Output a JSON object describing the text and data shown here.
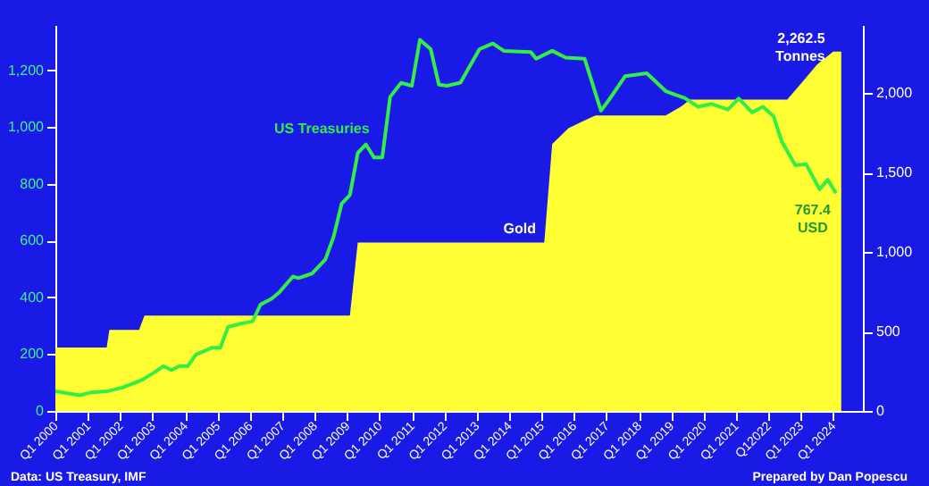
{
  "chart_data": {
    "type": "line",
    "xlim": [
      "2000-01",
      "2024-12"
    ],
    "xticks": [
      {
        "value": "2000-01",
        "label": "Q1 2000"
      },
      {
        "value": "2001-01",
        "label": "Q1 2001"
      },
      {
        "value": "2002-01",
        "label": "Q1 2002"
      },
      {
        "value": "2003-01",
        "label": "Q1 2003"
      },
      {
        "value": "2004-01",
        "label": "Q1 2004"
      },
      {
        "value": "2005-01",
        "label": "Q1 2005"
      },
      {
        "value": "2006-01",
        "label": "Q1 2006"
      },
      {
        "value": "2007-01",
        "label": "Q1 2007"
      },
      {
        "value": "2008-01",
        "label": "Q1 2008"
      },
      {
        "value": "2009-01",
        "label": "Q1 2009"
      },
      {
        "value": "2010-01",
        "label": "Q1 2010"
      },
      {
        "value": "2011-01",
        "label": "Q1 2011"
      },
      {
        "value": "2012-01",
        "label": "Q1 2012"
      },
      {
        "value": "2013-01",
        "label": "Q1 2013"
      },
      {
        "value": "2014-01",
        "label": "Q1 2014"
      },
      {
        "value": "2015-01",
        "label": "Q1 2015"
      },
      {
        "value": "2016-01",
        "label": "Q1 2016"
      },
      {
        "value": "2017-01",
        "label": "Q1 2017"
      },
      {
        "value": "2018-01",
        "label": "Q1 2018"
      },
      {
        "value": "2019-01",
        "label": "Q1 2019"
      },
      {
        "value": "2020-01",
        "label": "Q1 2020"
      },
      {
        "value": "2021-01",
        "label": "Q1 2021"
      },
      {
        "value": "2022-01",
        "label": "Q12022"
      },
      {
        "value": "2023-01",
        "label": "Q1 2023"
      },
      {
        "value": "2024-01",
        "label": "Q1 2024"
      }
    ],
    "ylim": [
      0,
      1360
    ],
    "yticks": [
      0,
      200,
      400,
      600,
      800,
      {
        "value": 1000,
        "label": "1,000"
      },
      {
        "value": 1200,
        "label": "1,200"
      }
    ],
    "y2lim": [
      0,
      2430
    ],
    "y2ticks": [
      0,
      500,
      {
        "value": 1000,
        "label": "1,000"
      },
      {
        "value": 1500,
        "label": "1,500"
      },
      {
        "value": 2000,
        "label": "2,000"
      }
    ],
    "grid": false,
    "legend": false,
    "series": [
      {
        "type": "area",
        "axis": "y2",
        "name": "Gold",
        "color": "#ffff33",
        "value_labels": [
          null,
          null,
          null,
          null,
          null,
          null,
          null,
          null,
          null,
          null,
          null,
          null,
          null,
          null,
          null,
          null,
          null,
          null,
          null,
          "2,262.5\nTonnes"
        ],
        "x": [
          "2000-01",
          "2001-08",
          "2001-09",
          "2002-08",
          "2002-10",
          "2009-02",
          "2009-05",
          "2015-02",
          "2015-05",
          "2015-11",
          "2016-05",
          "2016-09",
          "2018-11",
          "2019-05",
          "2019-08",
          "2022-08",
          "2023-02",
          "2023-07",
          "2024-01",
          "2024-04"
        ],
        "values": [
          400,
          400,
          510,
          510,
          600,
          600,
          1060,
          1060,
          1680,
          1780,
          1830,
          1860,
          1860,
          1920,
          1960,
          1960,
          2080,
          2180,
          2262.5,
          2262.5
        ]
      },
      {
        "type": "line",
        "axis": "y",
        "name": "US Treasuries",
        "color": "#33ee44",
        "value_labels": [
          null,
          null,
          null,
          null,
          null,
          null,
          null,
          null,
          null,
          null,
          null,
          null,
          null,
          null,
          null,
          null,
          null,
          null,
          null,
          null,
          null,
          null,
          null,
          null,
          null,
          null,
          null,
          null,
          null,
          null,
          null,
          null,
          null,
          null,
          null,
          null,
          null,
          null,
          null,
          null,
          null,
          null,
          null,
          null,
          null,
          null,
          null,
          null,
          null,
          null,
          null,
          null,
          null,
          null,
          null,
          null,
          null,
          null,
          null,
          null,
          null,
          null,
          null,
          null,
          null,
          "767.4\nUSD"
        ],
        "x": [
          "2000-01",
          "2000-10",
          "2001-02",
          "2001-08",
          "2002-02",
          "2002-09",
          "2003-02",
          "2003-05",
          "2003-08",
          "2003-11",
          "2004-02",
          "2004-05",
          "2004-11",
          "2005-02",
          "2005-05",
          "2005-09",
          "2006-02",
          "2006-05",
          "2006-09",
          "2006-12",
          "2007-05",
          "2007-07",
          "2007-12",
          "2008-05",
          "2008-08",
          "2008-11",
          "2009-02",
          "2009-05",
          "2009-08",
          "2009-11",
          "2010-02",
          "2010-05",
          "2010-09",
          "2011-01",
          "2011-04",
          "2011-08",
          "2011-11",
          "2012-02",
          "2012-07",
          "2013-02",
          "2013-07",
          "2013-11",
          "2014-09",
          "2014-11",
          "2015-05",
          "2015-10",
          "2016-05",
          "2016-11",
          "2017-02",
          "2017-08",
          "2018-04",
          "2018-11",
          "2019-06",
          "2019-11",
          "2020-04",
          "2020-10",
          "2021-02",
          "2021-07",
          "2021-11",
          "2022-03",
          "2022-06",
          "2022-11",
          "2023-03",
          "2023-08",
          "2023-11",
          "2024-02"
        ],
        "values": [
          69,
          55,
          65,
          69,
          83,
          109,
          138,
          158,
          144,
          158,
          158,
          198,
          223,
          223,
          296,
          306,
          316,
          375,
          395,
          419,
          474,
          468,
          484,
          534,
          613,
          731,
          761,
          909,
          939,
          893,
          893,
          1107,
          1156,
          1146,
          1308,
          1275,
          1150,
          1146,
          1157,
          1275,
          1295,
          1269,
          1265,
          1241,
          1269,
          1245,
          1241,
          1058,
          1097,
          1180,
          1190,
          1127,
          1103,
          1072,
          1082,
          1062,
          1101,
          1052,
          1072,
          1038,
          949,
          866,
          870,
          781,
          815,
          767.4
        ]
      }
    ],
    "annotations": [
      "Data: US Treasury, IMF",
      "Prepared by Dan Popescu"
    ]
  }
}
